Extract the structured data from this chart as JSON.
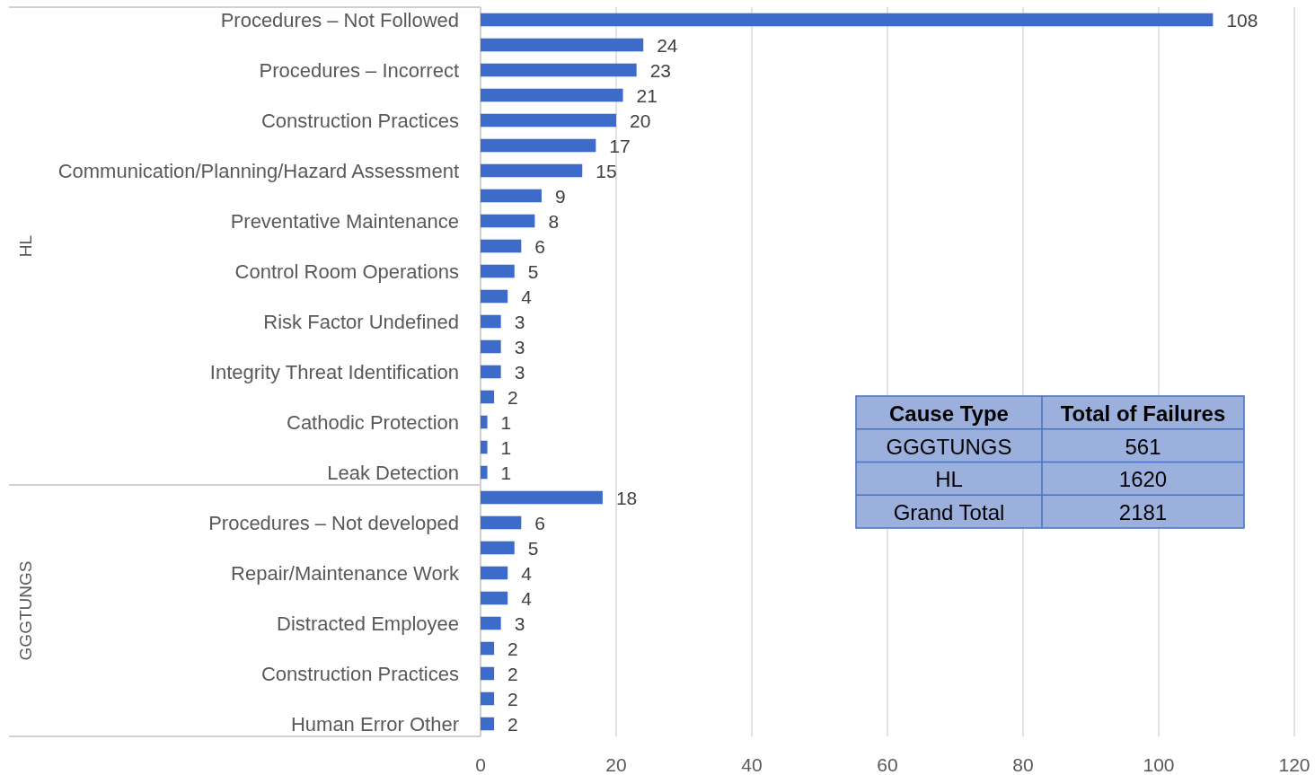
{
  "chart_data": [
    {
      "type": "bar",
      "orientation": "horizontal",
      "categories": [
        "Procedures – Not Followed",
        null,
        "Procedures – Incorrect",
        null,
        "Construction Practices",
        null,
        "Communication/Planning/Hazard Assessment",
        null,
        "Preventative Maintenance",
        null,
        "Control Room Operations",
        null,
        "Risk Factor Undefined",
        null,
        "Integrity Threat Identification",
        null,
        "Cathodic Protection",
        null,
        "Leak Detection",
        null,
        "Procedures – Not developed",
        null,
        "Repair/Maintenance Work",
        null,
        "Distracted Employee",
        null,
        "Construction Practices",
        null,
        "Human Error Other"
      ],
      "series": [
        {
          "color": "#3d6bc9",
          "values": [
            108,
            24,
            23,
            21,
            20,
            17,
            15,
            9,
            8,
            6,
            5,
            4,
            3,
            3,
            3,
            2,
            1,
            1,
            1,
            null,
            null,
            null,
            null,
            null,
            null,
            null,
            null,
            null,
            null
          ]
        },
        {
          "color": "#3d6bc9",
          "values": [
            null,
            null,
            null,
            null,
            null,
            null,
            null,
            null,
            null,
            null,
            null,
            null,
            null,
            null,
            null,
            null,
            null,
            null,
            null,
            18,
            6,
            5,
            4,
            4,
            3,
            2,
            2,
            2,
            2
          ]
        }
      ],
      "annotations": [
        "HL",
        "GGGTUNGS"
      ],
      "xlim": [
        0,
        120
      ],
      "xticks": [
        0,
        20,
        40,
        60,
        80,
        100,
        120
      ],
      "grid": "x",
      "data_labels": true
    },
    {
      "type": "other",
      "annotations": [
        "Cause Type",
        "Total of Failures"
      ],
      "categories": [
        "GGGTUNGS",
        "HL",
        "Grand Total"
      ],
      "values": [
        561,
        1620,
        2181
      ],
      "data_labels": true,
      "color": "#9cb0de"
    }
  ]
}
